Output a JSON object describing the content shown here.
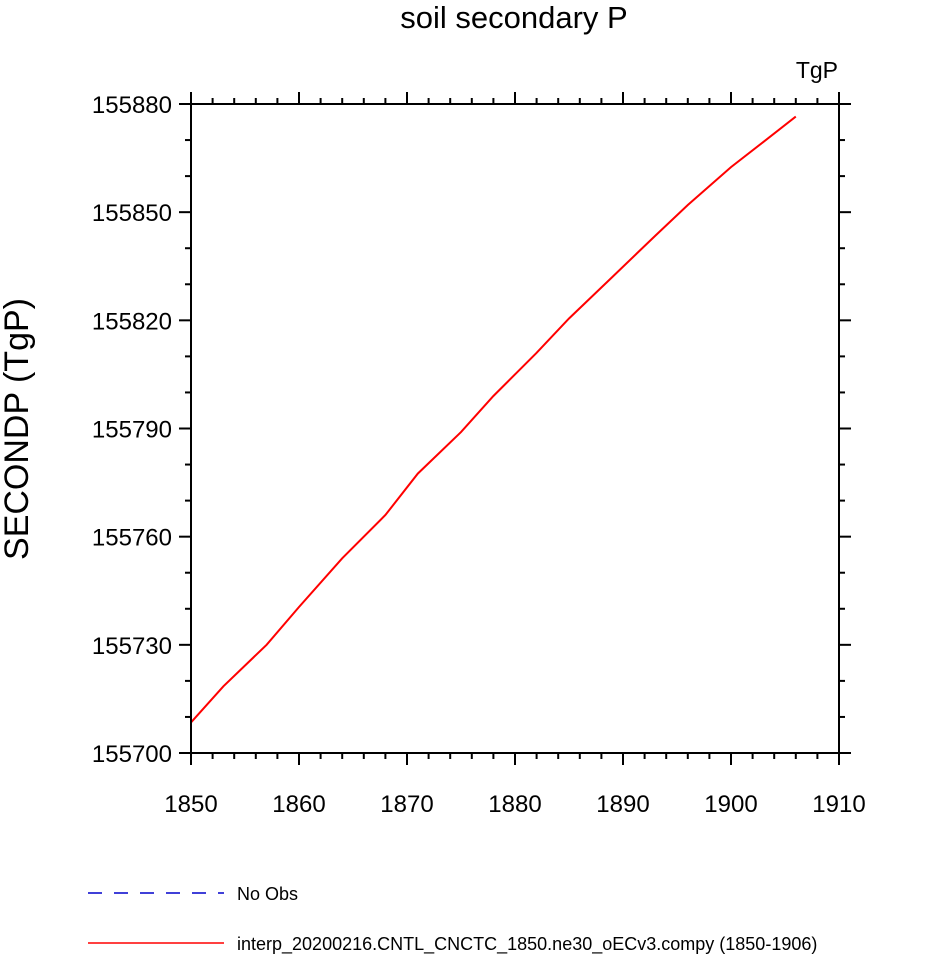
{
  "chart_data": {
    "type": "line",
    "title": "soil secondary P",
    "units_label": "TgP",
    "ylabel": "SECONDP  (TgP)",
    "xlabel": "",
    "xlim": [
      1850,
      1910
    ],
    "ylim": [
      155700,
      155880
    ],
    "xticks": [
      1850,
      1860,
      1870,
      1880,
      1890,
      1900,
      1910
    ],
    "yticks": [
      155700,
      155730,
      155760,
      155790,
      155820,
      155850,
      155880
    ],
    "x_minor_step": 2,
    "y_minor_step": 10,
    "grid": false,
    "legend_position": "bottom",
    "series": [
      {
        "name": "No Obs",
        "color": "#0000cc",
        "dash": "dashed",
        "x": [],
        "y": []
      },
      {
        "name": "interp_20200216.CNTL_CNCTC_1850.ne30_oECv3.compy (1850-1906)",
        "color": "#ff0000",
        "dash": "solid",
        "x": [
          1850,
          1853,
          1857,
          1860,
          1864,
          1868,
          1871,
          1875,
          1878,
          1882,
          1885,
          1889,
          1893,
          1896,
          1900,
          1903,
          1906
        ],
        "y": [
          155708.5,
          155718.5,
          155730,
          155740.5,
          155754,
          155766,
          155777.5,
          155789,
          155799,
          155811,
          155820.5,
          155832,
          155843.5,
          155852,
          155862.5,
          155869.5,
          155876.5
        ]
      }
    ]
  }
}
